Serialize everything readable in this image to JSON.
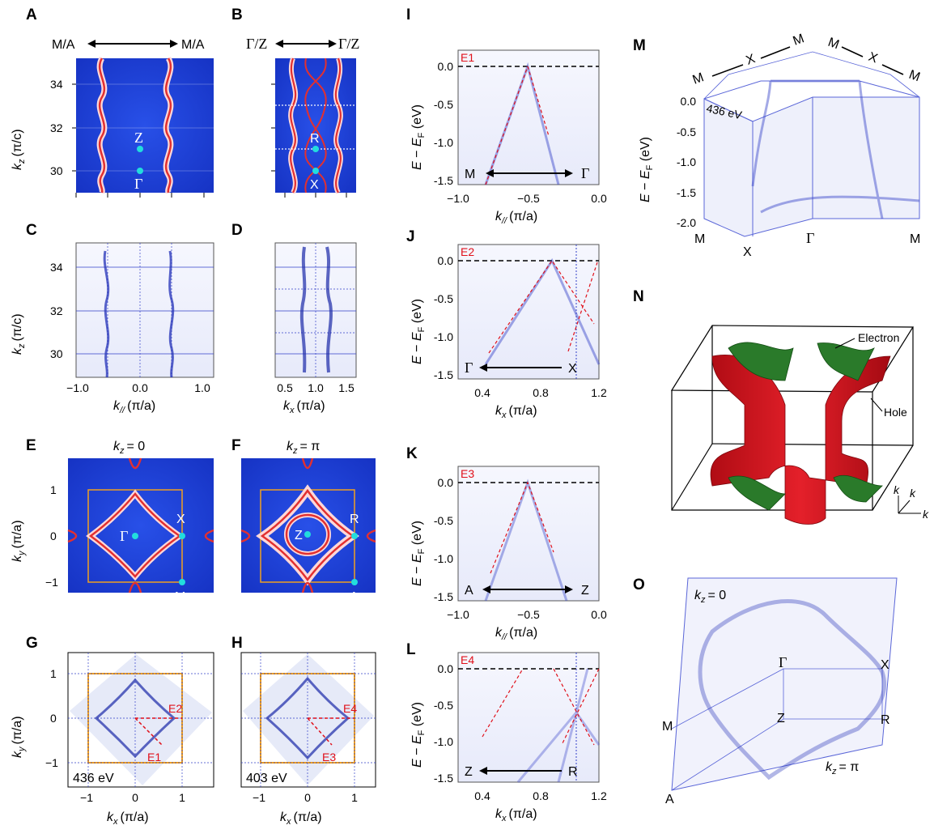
{
  "panels": {
    "A": {
      "letter": "A",
      "top_left": "M/A",
      "top_right": "M/A",
      "ylabel": "k",
      "ylabel_sub": "z",
      "ylabel_unit": "(π/c)",
      "yticks": [
        "34",
        "32",
        "30"
      ],
      "points": [
        "Z",
        "Γ"
      ]
    },
    "B": {
      "letter": "B",
      "top_left": "Γ/Z",
      "top_right": "Γ/Z",
      "points": [
        "R",
        "X"
      ]
    },
    "C": {
      "letter": "C",
      "ylabel": "k",
      "ylabel_sub": "z",
      "ylabel_unit": "(π/c)",
      "yticks": [
        "34",
        "32",
        "30"
      ],
      "xticks": [
        "−1.0",
        "0.0",
        "1.0"
      ],
      "xlabel": "k",
      "xlabel_sub": "//",
      "xlabel_unit": "(π/a)"
    },
    "D": {
      "letter": "D",
      "xticks": [
        "0.5",
        "1.0",
        "1.5"
      ],
      "xlabel": "k",
      "xlabel_sub": "x",
      "xlabel_unit": "(π/a)"
    },
    "E": {
      "letter": "E",
      "title_k": "k",
      "title_sub": "z",
      "title_val": "= 0",
      "ylabel": "k",
      "ylabel_sub": "y",
      "ylabel_unit": "(π/a)",
      "yticks": [
        "1",
        "0",
        "−1"
      ],
      "points": [
        "Γ",
        "X",
        "M"
      ]
    },
    "F": {
      "letter": "F",
      "title_k": "k",
      "title_sub": "z",
      "title_val": "= π",
      "points": [
        "Z",
        "R",
        "A"
      ]
    },
    "G": {
      "letter": "G",
      "energy": "436 eV",
      "cuts": [
        "E2",
        "E1"
      ],
      "ylabel": "k",
      "ylabel_sub": "y",
      "ylabel_unit": "(π/a)",
      "yticks": [
        "1",
        "0",
        "−1"
      ],
      "xticks": [
        "−1",
        "0",
        "1"
      ],
      "xlabel": "k",
      "xlabel_sub": "x",
      "xlabel_unit": "(π/a)"
    },
    "H": {
      "letter": "H",
      "energy": "403 eV",
      "cuts": [
        "E4",
        "E3"
      ],
      "xticks": [
        "−1",
        "0",
        "1"
      ],
      "xlabel": "k",
      "xlabel_sub": "x",
      "xlabel_unit": "(π/a)"
    },
    "I": {
      "letter": "I",
      "cut": "E1",
      "left": "M",
      "right": "Γ",
      "yticks": [
        "0.0",
        "-0.5",
        "-1.0",
        "-1.5"
      ],
      "xticks": [
        "−1.0",
        "−0.5",
        "0.0"
      ],
      "xlabel": "k",
      "xlabel_sub": "//",
      "xlabel_unit": "(π/a)"
    },
    "J": {
      "letter": "J",
      "cut": "E2",
      "left": "Γ",
      "right": "X",
      "yticks": [
        "0.0",
        "-0.5",
        "-1.0",
        "-1.5"
      ],
      "xticks": [
        "0.4",
        "0.8",
        "1.2"
      ],
      "xlabel": "k",
      "xlabel_sub": "x",
      "xlabel_unit": "(π/a)"
    },
    "K": {
      "letter": "K",
      "cut": "E3",
      "left": "A",
      "right": "Z",
      "yticks": [
        "0.0",
        "-0.5",
        "-1.0",
        "-1.5"
      ],
      "xticks": [
        "−1.0",
        "−0.5",
        "0.0"
      ],
      "xlabel": "k",
      "xlabel_sub": "//",
      "xlabel_unit": "(π/a)"
    },
    "L": {
      "letter": "L",
      "cut": "E4",
      "left": "Z",
      "right": "R",
      "yticks": [
        "0.0",
        "-0.5",
        "-1.0",
        "-1.5"
      ],
      "xticks": [
        "0.4",
        "0.8",
        "1.2"
      ],
      "xlabel": "k",
      "xlabel_sub": "x",
      "xlabel_unit": "(π/a)"
    },
    "M": {
      "letter": "M",
      "energy": "436 eV",
      "top_left": [
        "M",
        "X",
        "M"
      ],
      "top_right": [
        "M",
        "X",
        "M"
      ],
      "bottom": [
        "M",
        "X",
        "Γ",
        "M"
      ],
      "yticks": [
        "0.0",
        "-0.5",
        "-1.0",
        "-1.5",
        "-2.0"
      ]
    },
    "N": {
      "letter": "N",
      "electron": "Electron",
      "hole": "Hole",
      "axes": [
        "k",
        "k",
        "k"
      ],
      "axes_sub": [
        "z",
        "y",
        "x"
      ]
    },
    "O": {
      "letter": "O",
      "kz0": "= 0",
      "kzpi": "= π",
      "kz_k": "k",
      "kz_sub": "z",
      "points": [
        "Γ",
        "X",
        "M",
        "Z",
        "R",
        "A"
      ]
    }
  },
  "energy_axis": {
    "E": "E",
    "minus": " − ",
    "EF": "E",
    "EF_sub": "F",
    "unit": " (eV)"
  },
  "colors": {
    "map_bg": "#1f3fd6",
    "band": "#e23030",
    "arpes_bg": "#eef0fb",
    "arpes_line": "#3340c8",
    "bz": "#f0a020",
    "point": "#22dddd",
    "electron": "#2a7a2a",
    "hole": "#d0141c",
    "cut": "#e0101a"
  }
}
